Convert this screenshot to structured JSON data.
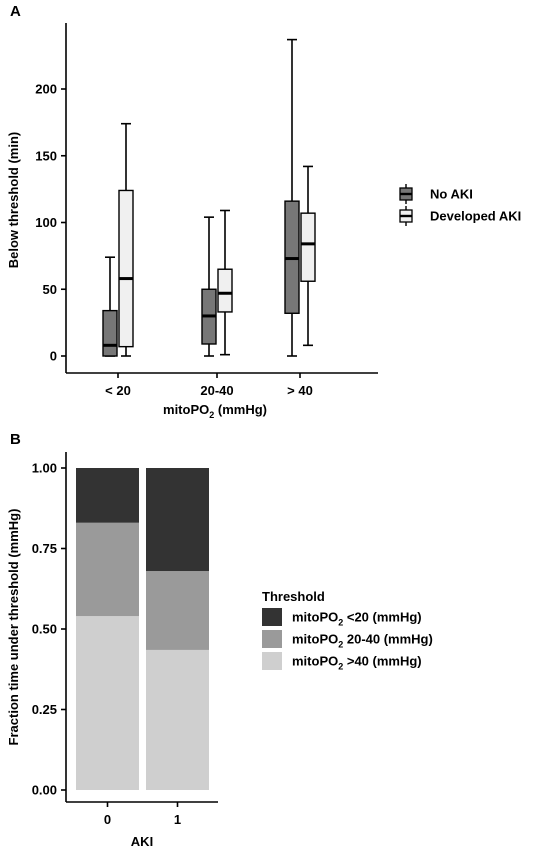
{
  "chart_data": [
    {
      "type": "boxplot",
      "panel_label": "A",
      "xlabel": "mitoPO",
      "xlabel_sub": "2",
      "xlabel_suffix": " (mmHg)",
      "ylabel": "Below threshold (min)",
      "ylim": [
        0,
        250
      ],
      "yticks": [
        0,
        50,
        100,
        150,
        200
      ],
      "categories": [
        "< 20",
        "20-40",
        "> 40"
      ],
      "legend_position": "right",
      "series": [
        {
          "name": "No AKI",
          "color": "#777777",
          "boxes": [
            {
              "min": 0,
              "q1": 0,
              "median": 8,
              "q3": 34,
              "max": 74
            },
            {
              "min": 0,
              "q1": 9,
              "median": 30,
              "q3": 50,
              "max": 104
            },
            {
              "min": 0,
              "q1": 32,
              "median": 73,
              "q3": 116,
              "max": 237
            }
          ]
        },
        {
          "name": "Developed AKI",
          "color": "#f0f0f0",
          "boxes": [
            {
              "min": 0,
              "q1": 7,
              "median": 58,
              "q3": 124,
              "max": 174
            },
            {
              "min": 1,
              "q1": 33,
              "median": 47,
              "q3": 65,
              "max": 109
            },
            {
              "min": 8,
              "q1": 56,
              "median": 84,
              "q3": 107,
              "max": 142
            }
          ]
        }
      ]
    },
    {
      "type": "stacked-bar",
      "panel_label": "B",
      "xlabel": "AKI",
      "ylabel": "Fraction time under threshold (mmHg)",
      "ylim": [
        0,
        1
      ],
      "yticks": [
        "0.00",
        "0.25",
        "0.50",
        "0.75",
        "1.00"
      ],
      "categories": [
        "0",
        "1"
      ],
      "legend_title": "Threshold",
      "legend_position": "right",
      "series": [
        {
          "name": "mitoPO",
          "sub": "2",
          "suffix": " >40 (mmHg)",
          "color": "#cfcfcf",
          "values": [
            0.54,
            0.435
          ]
        },
        {
          "name": "mitoPO",
          "sub": "2",
          "suffix": " 20-40 (mmHg)",
          "color": "#9a9a9a",
          "values": [
            0.29,
            0.245
          ]
        },
        {
          "name": "mitoPO",
          "sub": "2",
          "suffix": " <20 (mmHg)",
          "color": "#333333",
          "values": [
            0.17,
            0.32
          ]
        }
      ],
      "legend_order": [
        2,
        1,
        0
      ]
    }
  ]
}
